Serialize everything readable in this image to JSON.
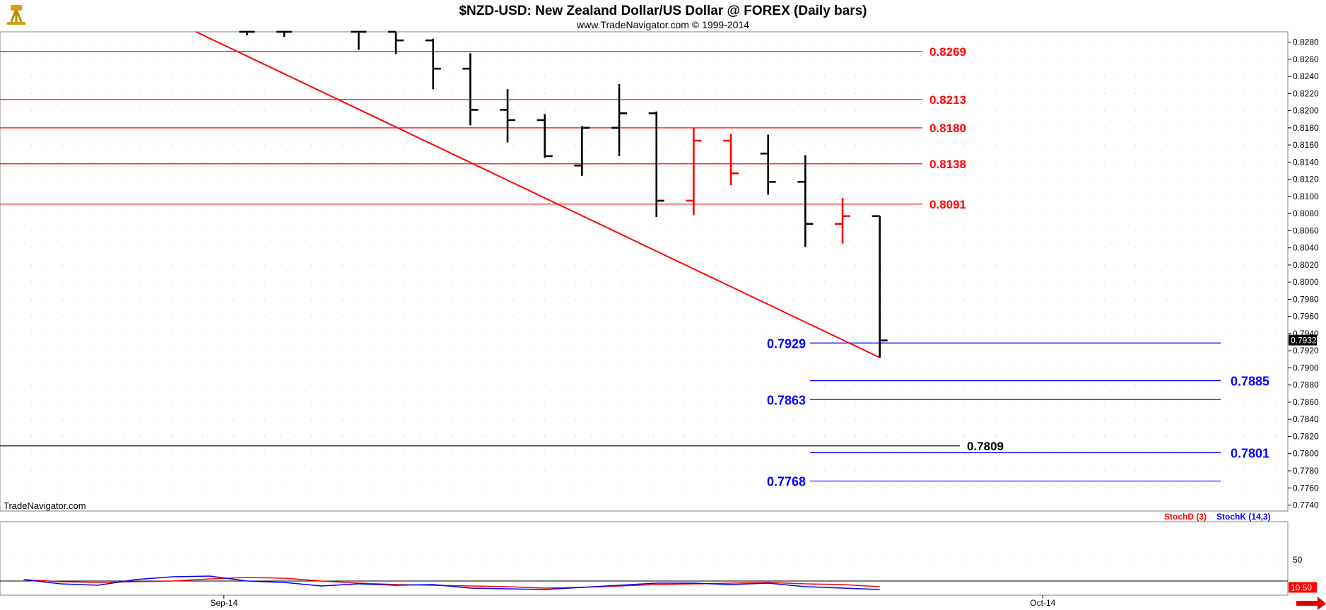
{
  "header": {
    "title": "$NZD-USD:  New Zealand Dollar/US Dollar @ FOREX  (Daily bars)",
    "subtitle": "www.TradeNavigator.com © 1999-2014",
    "watermark": "TradeNavigator.com",
    "logo_icon": "compass-tripod-icon"
  },
  "colors": {
    "bull": "#ff0000",
    "bear": "#000000",
    "resistance": "#ff0000",
    "support": "#0000ff",
    "trendline": "#ff0000",
    "stochD": "#ff0000",
    "stochK": "#0000ff"
  },
  "chart_data": [
    {
      "type": "ohlc",
      "title": "$NZD-USD:  New Zealand Dollar/US Dollar @ FOREX  (Daily bars)",
      "x_tick_labels": [
        {
          "label": "Sep-14",
          "at_bar": 5
        },
        {
          "label": "Oct-14",
          "at_bar": 27
        }
      ],
      "ylim": [
        0.7733,
        0.8292
      ],
      "y_ticks": [
        0.774,
        0.776,
        0.778,
        0.78,
        0.782,
        0.784,
        0.786,
        0.788,
        0.79,
        0.792,
        0.794,
        0.796,
        0.798,
        0.8,
        0.802,
        0.804,
        0.806,
        0.808,
        0.81,
        0.812,
        0.814,
        0.816,
        0.818,
        0.82,
        0.822,
        0.824,
        0.826,
        0.828
      ],
      "y_tick_labels": [
        "0.7740",
        "0.7760",
        "0.7780",
        "0.7800",
        "0.7820",
        "0.7840",
        "0.7860",
        "0.7880",
        "0.7900",
        "0.7920",
        "0.7940",
        "0.7960",
        "0.7980",
        "0.8000",
        "0.8020",
        "0.8040",
        "0.8060",
        "0.8080",
        "0.8100",
        "0.8120",
        "0.8140",
        "0.8160",
        "0.8180",
        "0.8200",
        "0.8220",
        "0.8240",
        "0.8260",
        "0.8280"
      ],
      "last_price": "0.7932",
      "bars": [
        {
          "i": 6,
          "o": 0.8292,
          "h": 0.8292,
          "l": 0.8288,
          "c": 0.8292,
          "dir": "down"
        },
        {
          "i": 7,
          "o": 0.8292,
          "h": 0.8292,
          "l": 0.8286,
          "c": 0.8292,
          "dir": "down"
        },
        {
          "i": 9,
          "o": 0.8292,
          "h": 0.8292,
          "l": 0.8271,
          "c": 0.8292,
          "dir": "down"
        },
        {
          "i": 10,
          "o": 0.8292,
          "h": 0.8292,
          "l": 0.8266,
          "c": 0.8282,
          "dir": "down"
        },
        {
          "i": 11,
          "o": 0.8282,
          "h": 0.8284,
          "l": 0.8225,
          "c": 0.8249,
          "dir": "down"
        },
        {
          "i": 12,
          "o": 0.8249,
          "h": 0.8267,
          "l": 0.8183,
          "c": 0.8201,
          "dir": "down"
        },
        {
          "i": 13,
          "o": 0.8201,
          "h": 0.8225,
          "l": 0.8163,
          "c": 0.8189,
          "dir": "down"
        },
        {
          "i": 14,
          "o": 0.8189,
          "h": 0.8196,
          "l": 0.8145,
          "c": 0.8147,
          "dir": "down"
        },
        {
          "i": 15,
          "o": 0.8136,
          "h": 0.8182,
          "l": 0.8124,
          "c": 0.818,
          "dir": "down"
        },
        {
          "i": 16,
          "o": 0.818,
          "h": 0.8231,
          "l": 0.8147,
          "c": 0.8197,
          "dir": "down"
        },
        {
          "i": 17,
          "o": 0.8197,
          "h": 0.8199,
          "l": 0.8076,
          "c": 0.8095,
          "dir": "down"
        },
        {
          "i": 18,
          "o": 0.8095,
          "h": 0.818,
          "l": 0.8078,
          "c": 0.8165,
          "dir": "up"
        },
        {
          "i": 19,
          "o": 0.8165,
          "h": 0.8173,
          "l": 0.8113,
          "c": 0.8127,
          "dir": "up"
        },
        {
          "i": 20,
          "o": 0.815,
          "h": 0.8172,
          "l": 0.8102,
          "c": 0.8117,
          "dir": "down"
        },
        {
          "i": 21,
          "o": 0.8117,
          "h": 0.8148,
          "l": 0.8041,
          "c": 0.8068,
          "dir": "down"
        },
        {
          "i": 22,
          "o": 0.8068,
          "h": 0.8098,
          "l": 0.8045,
          "c": 0.8077,
          "dir": "up"
        },
        {
          "i": 23,
          "o": 0.8077,
          "h": 0.8077,
          "l": 0.7912,
          "c": 0.7932,
          "dir": "down"
        }
      ],
      "trendline": {
        "from": {
          "at_bar": 4.63,
          "y": 0.8292
        },
        "to": {
          "at_bar": 23.0,
          "y": 0.7912
        }
      },
      "resistance_levels": [
        {
          "value": 0.8269,
          "label": "0.8269"
        },
        {
          "value": 0.8213,
          "label": "0.8213"
        },
        {
          "value": 0.818,
          "label": "0.8180"
        },
        {
          "value": 0.8138,
          "label": "0.8138"
        },
        {
          "value": 0.8091,
          "label": "0.8091"
        }
      ],
      "support_levels": [
        {
          "value": 0.7929,
          "label": "0.7929",
          "label_side": "left"
        },
        {
          "value": 0.7885,
          "label": "0.7885",
          "label_side": "right"
        },
        {
          "value": 0.7863,
          "label": "0.7863",
          "label_side": "left"
        },
        {
          "value": 0.7801,
          "label": "0.7801",
          "label_side": "right"
        },
        {
          "value": 0.7768,
          "label": "0.7768",
          "label_side": "left"
        }
      ],
      "black_level": {
        "value": 0.7809,
        "label": "0.7809"
      },
      "grid": true
    },
    {
      "type": "line",
      "legend": [
        {
          "name": "StochD (3)",
          "color": "#ff0000"
        },
        {
          "name": "StochK (14,3)",
          "color": "#0000ff"
        }
      ],
      "legend_position": "top-right",
      "ylim": [
        0,
        100
      ],
      "y_tick_labels": [
        "50"
      ],
      "reference_level": 20,
      "last_value": "10.50",
      "x": [
        0,
        1,
        2,
        3,
        4,
        5,
        6,
        7,
        8,
        9,
        10,
        11,
        12,
        13,
        14,
        15,
        16,
        17,
        18,
        19,
        20,
        21,
        22,
        23
      ],
      "series": [
        {
          "name": "StochD (3)",
          "values": [
            22,
            19,
            18,
            19,
            20,
            23,
            25,
            24,
            20,
            17,
            15,
            14,
            13,
            12,
            10,
            11,
            13,
            15,
            16,
            17,
            18,
            16,
            15,
            12
          ]
        },
        {
          "name": "StochK (14,3)",
          "values": [
            22,
            16,
            14,
            22,
            26,
            27,
            20,
            18,
            13,
            16,
            14,
            15,
            10,
            9,
            8,
            11,
            14,
            17,
            17,
            15,
            17,
            12,
            10,
            8
          ]
        }
      ]
    }
  ]
}
